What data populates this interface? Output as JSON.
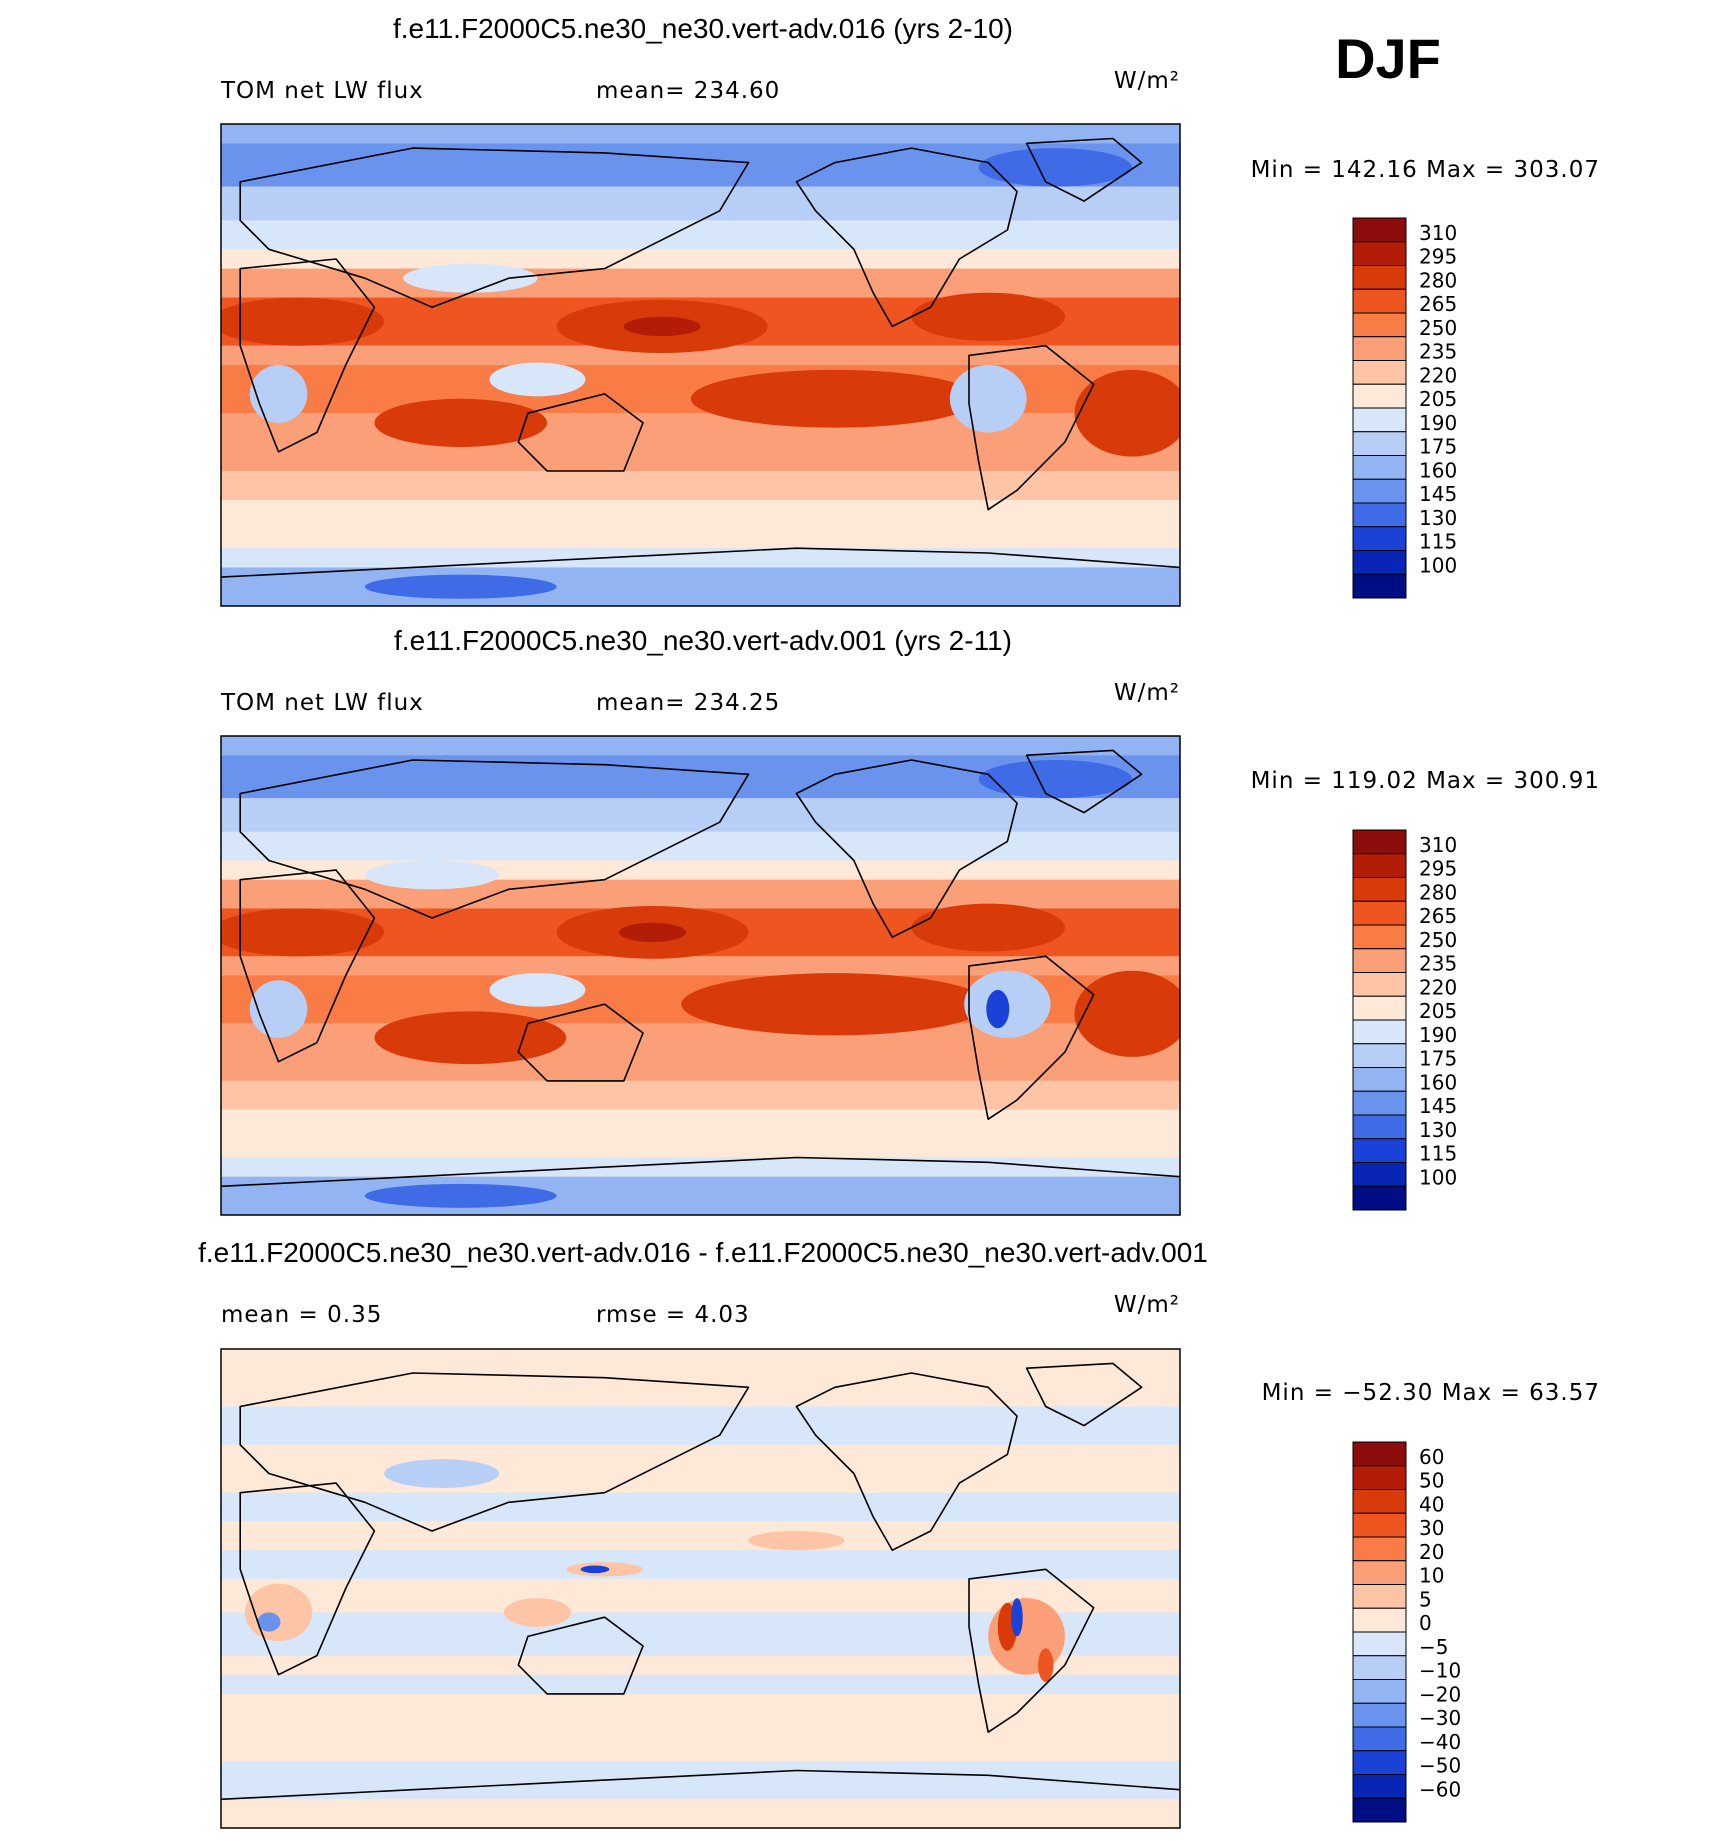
{
  "season": "DJF",
  "chart_data": [
    {
      "type": "heatmap",
      "title": "f.e11.F2000C5.ne30_ne30.vert-adv.016 (yrs 2-10)",
      "left_label": "TOM net LW flux",
      "center_label": "mean= 234.60",
      "units": "W/m²",
      "stats": "Min = 142.16 Max = 303.07",
      "colorbar": {
        "levels": [
          "310",
          "295",
          "280",
          "265",
          "250",
          "235",
          "220",
          "205",
          "190",
          "175",
          "160",
          "145",
          "130",
          "115",
          "100"
        ],
        "colors": [
          "#8c0c0c",
          "#b31d08",
          "#d83a0a",
          "#ee5520",
          "#f97b45",
          "#fb9f78",
          "#fdc5a6",
          "#fee8d7",
          "#d8e6fa",
          "#b7cff7",
          "#93b4f3",
          "#6a93ee",
          "#3f6ce6",
          "#1a42d6",
          "#0825b6",
          "#000d85"
        ]
      },
      "background": "#fdd2b8",
      "bands": [
        {
          "top": 0.0,
          "bottom": 0.04,
          "color": "#93b4f3"
        },
        {
          "top": 0.04,
          "bottom": 0.13,
          "color": "#6a93ee"
        },
        {
          "top": 0.13,
          "bottom": 0.2,
          "color": "#b7cff7"
        },
        {
          "top": 0.2,
          "bottom": 0.26,
          "color": "#d8e6fa"
        },
        {
          "top": 0.26,
          "bottom": 0.3,
          "color": "#fee8d7"
        },
        {
          "top": 0.3,
          "bottom": 0.36,
          "color": "#fb9f78"
        },
        {
          "top": 0.36,
          "bottom": 0.46,
          "color": "#ee5520"
        },
        {
          "top": 0.46,
          "bottom": 0.5,
          "color": "#fb9f78"
        },
        {
          "top": 0.5,
          "bottom": 0.6,
          "color": "#f97b45"
        },
        {
          "top": 0.6,
          "bottom": 0.72,
          "color": "#fb9f78"
        },
        {
          "top": 0.72,
          "bottom": 0.78,
          "color": "#fdc5a6"
        },
        {
          "top": 0.78,
          "bottom": 0.88,
          "color": "#fee8d7"
        },
        {
          "top": 0.88,
          "bottom": 0.92,
          "color": "#d8e6fa"
        },
        {
          "top": 0.92,
          "bottom": 1.0,
          "color": "#93b4f3"
        }
      ],
      "blobs": [
        {
          "cx": 0.46,
          "cy": 0.42,
          "rx": 0.11,
          "ry": 0.055,
          "color": "#d83a0a"
        },
        {
          "cx": 0.46,
          "cy": 0.42,
          "rx": 0.04,
          "ry": 0.02,
          "color": "#b31d08"
        },
        {
          "cx": 0.64,
          "cy": 0.57,
          "rx": 0.15,
          "ry": 0.06,
          "color": "#d83a0a"
        },
        {
          "cx": 0.25,
          "cy": 0.62,
          "rx": 0.09,
          "ry": 0.05,
          "color": "#d83a0a"
        },
        {
          "cx": 0.95,
          "cy": 0.6,
          "rx": 0.06,
          "ry": 0.09,
          "color": "#d83a0a"
        },
        {
          "cx": 0.08,
          "cy": 0.41,
          "rx": 0.09,
          "ry": 0.05,
          "color": "#d83a0a"
        },
        {
          "cx": 0.8,
          "cy": 0.4,
          "rx": 0.08,
          "ry": 0.05,
          "color": "#d83a0a"
        },
        {
          "cx": 0.33,
          "cy": 0.53,
          "rx": 0.05,
          "ry": 0.035,
          "color": "#d8e6fa"
        },
        {
          "cx": 0.06,
          "cy": 0.56,
          "rx": 0.03,
          "ry": 0.06,
          "color": "#b7cff7"
        },
        {
          "cx": 0.8,
          "cy": 0.57,
          "rx": 0.04,
          "ry": 0.07,
          "color": "#b7cff7"
        },
        {
          "cx": 0.26,
          "cy": 0.32,
          "rx": 0.07,
          "ry": 0.03,
          "color": "#d8e6fa"
        },
        {
          "cx": 0.87,
          "cy": 0.09,
          "rx": 0.08,
          "ry": 0.04,
          "color": "#3f6ce6"
        },
        {
          "cx": 0.25,
          "cy": 0.96,
          "rx": 0.1,
          "ry": 0.025,
          "color": "#3f6ce6"
        }
      ]
    },
    {
      "type": "heatmap",
      "title": "f.e11.F2000C5.ne30_ne30.vert-adv.001 (yrs 2-11)",
      "left_label": "TOM net LW flux",
      "center_label": "mean= 234.25",
      "units": "W/m²",
      "stats": "Min = 119.02 Max = 300.91",
      "colorbar": {
        "levels": [
          "310",
          "295",
          "280",
          "265",
          "250",
          "235",
          "220",
          "205",
          "190",
          "175",
          "160",
          "145",
          "130",
          "115",
          "100"
        ],
        "colors": [
          "#8c0c0c",
          "#b31d08",
          "#d83a0a",
          "#ee5520",
          "#f97b45",
          "#fb9f78",
          "#fdc5a6",
          "#fee8d7",
          "#d8e6fa",
          "#b7cff7",
          "#93b4f3",
          "#6a93ee",
          "#3f6ce6",
          "#1a42d6",
          "#0825b6",
          "#000d85"
        ]
      },
      "background": "#fdd2b8",
      "bands": [
        {
          "top": 0.0,
          "bottom": 0.04,
          "color": "#93b4f3"
        },
        {
          "top": 0.04,
          "bottom": 0.13,
          "color": "#6a93ee"
        },
        {
          "top": 0.13,
          "bottom": 0.2,
          "color": "#b7cff7"
        },
        {
          "top": 0.2,
          "bottom": 0.26,
          "color": "#d8e6fa"
        },
        {
          "top": 0.26,
          "bottom": 0.3,
          "color": "#fee8d7"
        },
        {
          "top": 0.3,
          "bottom": 0.36,
          "color": "#fb9f78"
        },
        {
          "top": 0.36,
          "bottom": 0.46,
          "color": "#ee5520"
        },
        {
          "top": 0.46,
          "bottom": 0.5,
          "color": "#fb9f78"
        },
        {
          "top": 0.5,
          "bottom": 0.6,
          "color": "#f97b45"
        },
        {
          "top": 0.6,
          "bottom": 0.72,
          "color": "#fb9f78"
        },
        {
          "top": 0.72,
          "bottom": 0.78,
          "color": "#fdc5a6"
        },
        {
          "top": 0.78,
          "bottom": 0.88,
          "color": "#fee8d7"
        },
        {
          "top": 0.88,
          "bottom": 0.92,
          "color": "#d8e6fa"
        },
        {
          "top": 0.92,
          "bottom": 1.0,
          "color": "#93b4f3"
        }
      ],
      "blobs": [
        {
          "cx": 0.45,
          "cy": 0.41,
          "rx": 0.1,
          "ry": 0.055,
          "color": "#d83a0a"
        },
        {
          "cx": 0.45,
          "cy": 0.41,
          "rx": 0.035,
          "ry": 0.02,
          "color": "#b31d08"
        },
        {
          "cx": 0.64,
          "cy": 0.56,
          "rx": 0.16,
          "ry": 0.065,
          "color": "#d83a0a"
        },
        {
          "cx": 0.26,
          "cy": 0.63,
          "rx": 0.1,
          "ry": 0.055,
          "color": "#d83a0a"
        },
        {
          "cx": 0.95,
          "cy": 0.58,
          "rx": 0.06,
          "ry": 0.09,
          "color": "#d83a0a"
        },
        {
          "cx": 0.08,
          "cy": 0.41,
          "rx": 0.09,
          "ry": 0.05,
          "color": "#d83a0a"
        },
        {
          "cx": 0.8,
          "cy": 0.4,
          "rx": 0.08,
          "ry": 0.05,
          "color": "#d83a0a"
        },
        {
          "cx": 0.33,
          "cy": 0.53,
          "rx": 0.05,
          "ry": 0.035,
          "color": "#d8e6fa"
        },
        {
          "cx": 0.06,
          "cy": 0.57,
          "rx": 0.03,
          "ry": 0.06,
          "color": "#b7cff7"
        },
        {
          "cx": 0.82,
          "cy": 0.56,
          "rx": 0.045,
          "ry": 0.07,
          "color": "#b7cff7"
        },
        {
          "cx": 0.81,
          "cy": 0.57,
          "rx": 0.012,
          "ry": 0.04,
          "color": "#1a42d6"
        },
        {
          "cx": 0.22,
          "cy": 0.29,
          "rx": 0.07,
          "ry": 0.03,
          "color": "#d8e6fa"
        },
        {
          "cx": 0.87,
          "cy": 0.09,
          "rx": 0.08,
          "ry": 0.04,
          "color": "#3f6ce6"
        },
        {
          "cx": 0.25,
          "cy": 0.96,
          "rx": 0.1,
          "ry": 0.025,
          "color": "#3f6ce6"
        }
      ]
    },
    {
      "type": "heatmap",
      "title": "f.e11.F2000C5.ne30_ne30.vert-adv.016 - f.e11.F2000C5.ne30_ne30.vert-adv.001",
      "left_label": "mean =    0.35",
      "center_label": "rmse =    4.03",
      "units": "W/m²",
      "stats": "Min = −52.30 Max =  63.57",
      "colorbar": {
        "levels": [
          "60",
          "50",
          "40",
          "30",
          "20",
          "10",
          "5",
          "0",
          "−5",
          "−10",
          "−20",
          "−30",
          "−40",
          "−50",
          "−60"
        ],
        "colors": [
          "#8c0c0c",
          "#b31d08",
          "#d83a0a",
          "#ee5520",
          "#f97b45",
          "#fb9f78",
          "#fdc5a6",
          "#fee8d7",
          "#d8e6fa",
          "#b7cff7",
          "#93b4f3",
          "#6a93ee",
          "#3f6ce6",
          "#1a42d6",
          "#0825b6",
          "#000d85"
        ]
      },
      "background": "#fee8d7",
      "bands": [
        {
          "top": 0.12,
          "bottom": 0.2,
          "color": "#d8e6fa"
        },
        {
          "top": 0.3,
          "bottom": 0.36,
          "color": "#d8e6fa"
        },
        {
          "top": 0.42,
          "bottom": 0.48,
          "color": "#d8e6fa"
        },
        {
          "top": 0.55,
          "bottom": 0.64,
          "color": "#d8e6fa"
        },
        {
          "top": 0.68,
          "bottom": 0.72,
          "color": "#d8e6fa"
        },
        {
          "top": 0.86,
          "bottom": 0.94,
          "color": "#d8e6fa"
        }
      ],
      "blobs": [
        {
          "cx": 0.84,
          "cy": 0.6,
          "rx": 0.04,
          "ry": 0.08,
          "color": "#fb9f78"
        },
        {
          "cx": 0.82,
          "cy": 0.58,
          "rx": 0.01,
          "ry": 0.05,
          "color": "#d83a0a"
        },
        {
          "cx": 0.83,
          "cy": 0.56,
          "rx": 0.006,
          "ry": 0.04,
          "color": "#1a42d6"
        },
        {
          "cx": 0.86,
          "cy": 0.66,
          "rx": 0.008,
          "ry": 0.035,
          "color": "#ee5520"
        },
        {
          "cx": 0.33,
          "cy": 0.55,
          "rx": 0.035,
          "ry": 0.03,
          "color": "#fdc5a6"
        },
        {
          "cx": 0.06,
          "cy": 0.55,
          "rx": 0.035,
          "ry": 0.06,
          "color": "#fdc5a6"
        },
        {
          "cx": 0.05,
          "cy": 0.57,
          "rx": 0.012,
          "ry": 0.02,
          "color": "#6a93ee"
        },
        {
          "cx": 0.4,
          "cy": 0.46,
          "rx": 0.04,
          "ry": 0.015,
          "color": "#fdc5a6"
        },
        {
          "cx": 0.39,
          "cy": 0.46,
          "rx": 0.015,
          "ry": 0.008,
          "color": "#1a42d6"
        },
        {
          "cx": 0.23,
          "cy": 0.26,
          "rx": 0.06,
          "ry": 0.03,
          "color": "#b7cff7"
        },
        {
          "cx": 0.6,
          "cy": 0.4,
          "rx": 0.05,
          "ry": 0.02,
          "color": "#fdc5a6"
        }
      ]
    }
  ]
}
